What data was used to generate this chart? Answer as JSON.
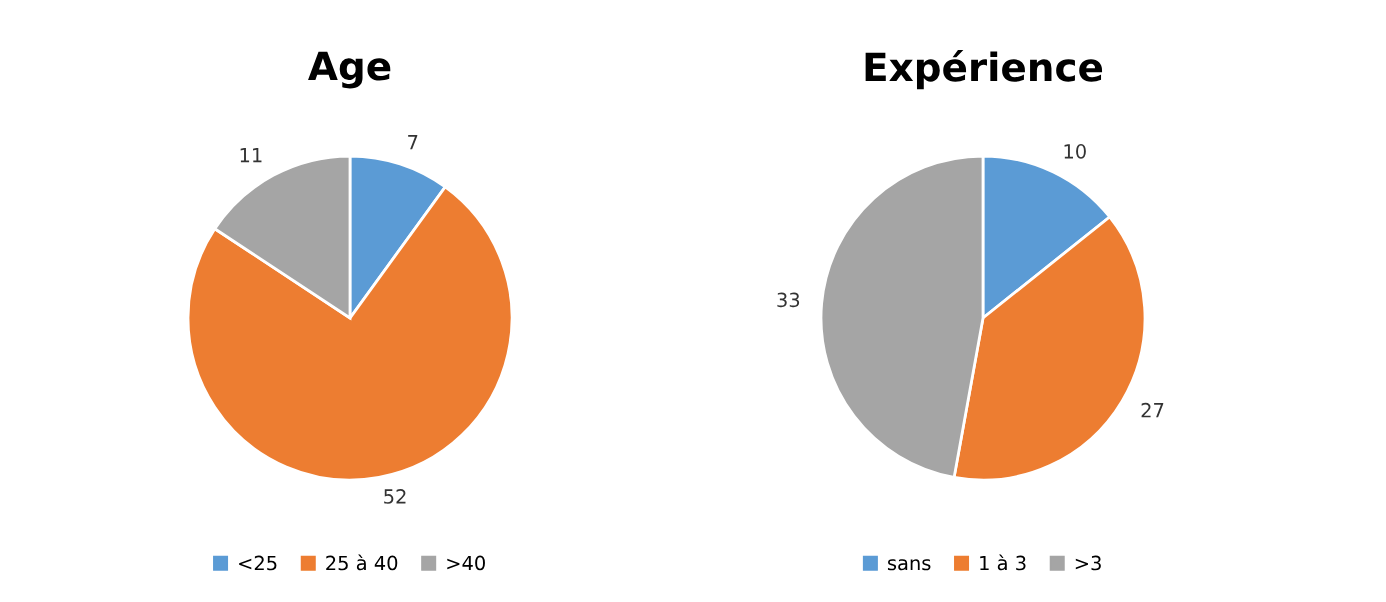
{
  "chart_data": [
    {
      "type": "pie",
      "title": "Age",
      "categories": [
        "<25",
        "25 à 40",
        ">40"
      ],
      "values": [
        7,
        52,
        11
      ],
      "colors": [
        "#5b9bd5",
        "#ed7d31",
        "#a5a5a5"
      ],
      "data_labels": true,
      "legend": "bottom"
    },
    {
      "type": "pie",
      "title": "Expérience",
      "categories": [
        "sans",
        "1 à 3",
        ">3"
      ],
      "values": [
        10,
        27,
        33
      ],
      "colors": [
        "#5b9bd5",
        "#ed7d31",
        "#a5a5a5"
      ],
      "data_labels": true,
      "legend": "bottom"
    }
  ]
}
